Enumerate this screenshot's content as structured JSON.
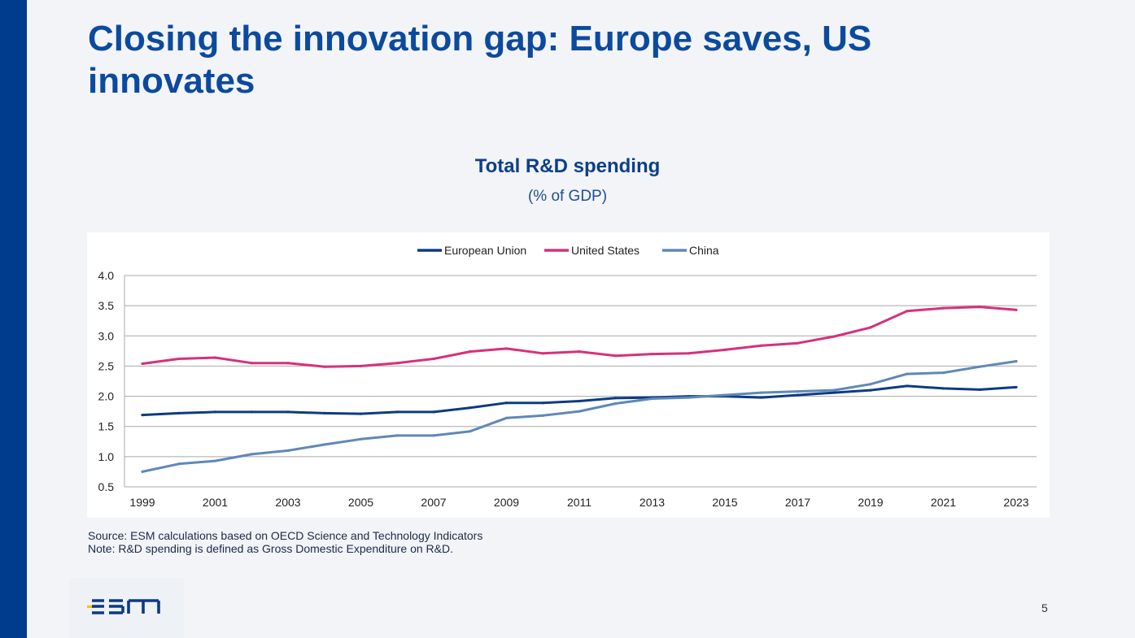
{
  "slide": {
    "title": "Closing the innovation gap: Europe saves, US innovates",
    "page_number": "5",
    "logo_text": "esm"
  },
  "colors": {
    "brand_blue": "#003c8e",
    "eu": "#0d3b84",
    "us": "#d6317b",
    "china": "#5f88b8"
  },
  "notes": {
    "source": "Source: ESM calculations based on OECD Science and Technology Indicators",
    "note": "Note: R&D spending is defined as Gross Domestic Expenditure on R&D."
  },
  "chart_data": {
    "type": "line",
    "title": "Total R&D spending",
    "subtitle": "(% of GDP)",
    "xlabel": "",
    "ylabel": "",
    "ylim": [
      0.5,
      4.0
    ],
    "yticks": [
      "0.5",
      "1.0",
      "1.5",
      "2.0",
      "2.5",
      "3.0",
      "3.5",
      "4.0"
    ],
    "x": [
      1999,
      2000,
      2001,
      2002,
      2003,
      2004,
      2005,
      2006,
      2007,
      2008,
      2009,
      2010,
      2011,
      2012,
      2013,
      2014,
      2015,
      2016,
      2017,
      2018,
      2019,
      2020,
      2021,
      2022,
      2023
    ],
    "xtick_labels": [
      "1999",
      "2001",
      "2003",
      "2005",
      "2007",
      "2009",
      "2011",
      "2013",
      "2015",
      "2017",
      "2019",
      "2021",
      "2023"
    ],
    "grid": true,
    "legend_position": "top-center",
    "series": [
      {
        "name": "European Union",
        "color": "#0d3b84",
        "values": [
          1.69,
          1.72,
          1.74,
          1.74,
          1.74,
          1.72,
          1.71,
          1.74,
          1.74,
          1.81,
          1.89,
          1.89,
          1.92,
          1.97,
          1.98,
          2.0,
          2.0,
          1.98,
          2.02,
          2.06,
          2.1,
          2.17,
          2.13,
          2.11,
          2.15
        ]
      },
      {
        "name": "United States",
        "color": "#d6317b",
        "values": [
          2.54,
          2.62,
          2.64,
          2.55,
          2.55,
          2.49,
          2.5,
          2.55,
          2.62,
          2.74,
          2.79,
          2.71,
          2.74,
          2.67,
          2.7,
          2.71,
          2.77,
          2.84,
          2.88,
          2.99,
          3.14,
          3.41,
          3.46,
          3.48,
          3.43
        ]
      },
      {
        "name": "China",
        "color": "#5f88b8",
        "values": [
          0.75,
          0.88,
          0.93,
          1.04,
          1.1,
          1.2,
          1.29,
          1.35,
          1.35,
          1.42,
          1.64,
          1.68,
          1.75,
          1.88,
          1.96,
          1.98,
          2.02,
          2.06,
          2.08,
          2.1,
          2.2,
          2.37,
          2.39,
          2.49,
          2.58
        ]
      }
    ]
  }
}
